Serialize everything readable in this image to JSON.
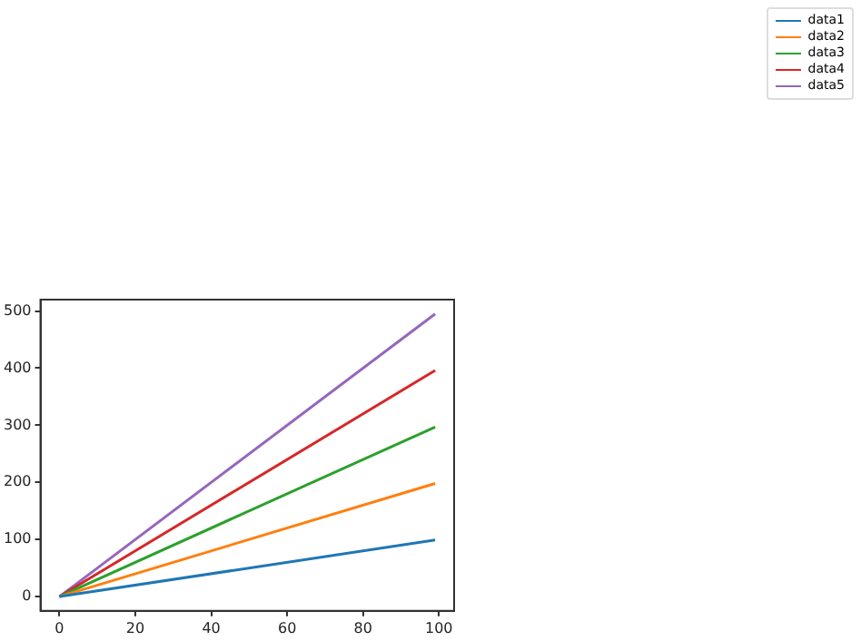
{
  "chart_data": {
    "type": "line",
    "x": [
      0,
      99
    ],
    "series": [
      {
        "name": "data1",
        "color": "#1f77b4",
        "values": [
          0,
          99
        ]
      },
      {
        "name": "data2",
        "color": "#ff7f0e",
        "values": [
          0,
          198
        ]
      },
      {
        "name": "data3",
        "color": "#2ca02c",
        "values": [
          0,
          297
        ]
      },
      {
        "name": "data4",
        "color": "#d62728",
        "values": [
          0,
          396
        ]
      },
      {
        "name": "data5",
        "color": "#9467bd",
        "values": [
          0,
          495
        ]
      }
    ],
    "xlim": [
      -5,
      104
    ],
    "xticks": [
      0,
      20,
      40,
      60,
      80,
      100
    ],
    "ylim": [
      -25,
      520
    ],
    "yticks": [
      0,
      100,
      200,
      300,
      400,
      500
    ],
    "grid": false,
    "legend": "top right",
    "marker": "none",
    "line_style": "solid"
  }
}
